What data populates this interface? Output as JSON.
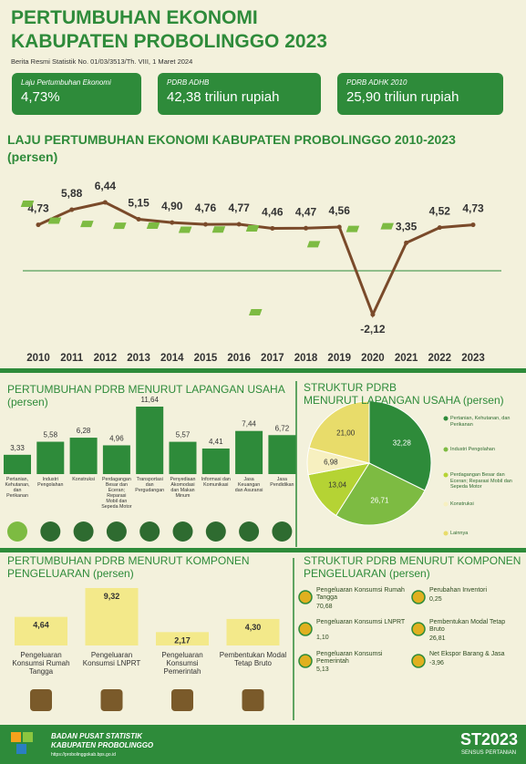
{
  "header": {
    "title": [
      "PERTUMBUHAN EKONOMI",
      "KABUPATEN PROBOLINGGO 2023"
    ],
    "subtitle": "Berita Resmi Statistik No. 01/03/3513/Th. VIII, 1 Maret 2024"
  },
  "indicators": [
    {
      "label": "Laju Pertumbuhan Ekonomi",
      "value": "4,73%"
    },
    {
      "label": "PDRB ADHB",
      "value": "42,38 triliun rupiah"
    },
    {
      "label": "PDRB ADHK 2010",
      "value": "25,90 triliun rupiah"
    }
  ],
  "chart_data": [
    {
      "type": "line",
      "title": "LAJU PERTUMBUHAN EKONOMI KABUPATEN PROBOLINGGO 2010-2023",
      "subtitle": "(persen)",
      "categories": [
        "2010",
        "2011",
        "2012",
        "2013",
        "2014",
        "2015",
        "2016",
        "2017",
        "2018",
        "2019",
        "2020",
        "2021",
        "2022",
        "2023"
      ],
      "values": [
        4.73,
        5.88,
        6.44,
        5.15,
        4.9,
        4.76,
        4.77,
        4.46,
        4.47,
        4.56,
        -2.12,
        3.35,
        4.52,
        4.73
      ],
      "value_labels": [
        "4,73",
        "5,88",
        "6,44",
        "5,15",
        "4,90",
        "4,76",
        "4,77",
        "4,46",
        "4,47",
        "4,56",
        "-2,12",
        "3,35",
        "4,52",
        "4,73"
      ],
      "color": "#7a4a2a"
    },
    {
      "type": "bar",
      "title": "PERTUMBUHAN PDRB MENURUT LAPANGAN USAHA",
      "subtitle": "(persen)",
      "categories": [
        "Pertanian, Kehutanan, dan Perikanan",
        "Industri Pengolahan",
        "Konstruksi",
        "Perdagangan Besar dan Eceran; Reparasi Mobil dan Sepeda Motor",
        "Transportasi dan Pergudangan",
        "Penyediaan Akomodasi dan Makan Minum",
        "Informasi dan Komunikasi",
        "Jasa Keuangan dan Asuransi",
        "Jasa Pendidikan"
      ],
      "values": [
        3.33,
        5.58,
        6.28,
        4.96,
        11.64,
        5.57,
        4.41,
        7.44,
        6.72
      ],
      "value_labels": [
        "3,33",
        "5,58",
        "6,28",
        "4,96",
        "11,64",
        "5,57",
        "4,41",
        "7,44",
        "6,72"
      ],
      "color": "#2e8b3a"
    },
    {
      "type": "pie",
      "title": [
        "STRUKTUR PDRB",
        "MENURUT LAPANGAN USAHA (persen)"
      ],
      "categories": [
        "Pertanian, Kehutanan, dan Perikanan",
        "Industri Pengolahan",
        "Perdagangan Besar dan Eceran; Reparasi Mobil dan Sepeda Motor",
        "Konstruksi",
        "Lainnya"
      ],
      "values": [
        32.28,
        26.71,
        13.04,
        6.98,
        21.0
      ],
      "value_labels": [
        "32,28",
        "26,71",
        "13,04",
        "6,98",
        "21,00"
      ],
      "colors": [
        "#2e8b3a",
        "#7dbb42",
        "#b5d334",
        "#f7f0c0",
        "#e8dc6a"
      ]
    },
    {
      "type": "bar",
      "title": [
        "PERTUMBUHAN PDRB MENURUT KOMPONEN",
        "PENGELUARAN (persen)"
      ],
      "categories": [
        "Pengeluaran Konsumsi Rumah Tangga",
        "Pengeluaran Konsumsi LNPRT",
        "Pengeluaran Konsumsi Pemerintah",
        "Pembentukan Modal Tetap Bruto"
      ],
      "values": [
        4.64,
        9.32,
        2.17,
        4.3
      ],
      "value_labels": [
        "4,64",
        "9,32",
        "2,17",
        "4,30"
      ],
      "color": "#f3e98a"
    },
    {
      "type": "list",
      "title": [
        "STRUKTUR PDRB MENURUT KOMPONEN",
        "PENGELUARAN (persen)"
      ],
      "categories": [
        "Pengeluaran Konsumsi Rumah Tangga",
        "Pengeluaran Konsumsi LNPRT",
        "Pengeluaran Konsumsi Pemerintah",
        "Perubahan Inventori",
        "Pembentukan Modal Tetap Bruto",
        "Net Ekspor Barang & Jasa"
      ],
      "values": [
        70.68,
        1.1,
        5.13,
        0.25,
        26.81,
        -3.96
      ],
      "value_labels": [
        "70,68",
        "1,10",
        "5,13",
        "0,25",
        "26,81",
        "-3,96"
      ],
      "color": "#e0b020"
    }
  ],
  "footer": {
    "org": [
      "BADAN PUSAT STATISTIK",
      "KABUPATEN PROBOLINGGO"
    ],
    "url": "https://probolinggokab.bps.go.id",
    "logo": "ST2023",
    "logo_caption": "SENSUS PERTANIAN"
  }
}
